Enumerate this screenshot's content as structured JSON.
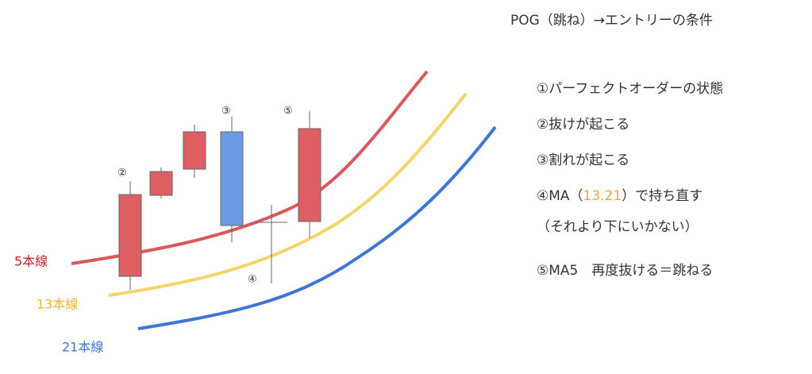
{
  "title": "POG（跳ね）→エントリーの条件",
  "conditions": [
    {
      "text": "①パーフェクトオーダーの状態"
    },
    {
      "text": "②抜けが起こる"
    },
    {
      "text": "③割れが起こる"
    },
    {
      "prefix": "④MA（",
      "highlight": "13.21",
      "suffix": "）で持ち直す"
    },
    {
      "text": "（それより下にいかない）"
    },
    {
      "text": "⑤MA5　再度抜ける＝跳ねる"
    }
  ],
  "ma_labels": [
    "5本線",
    "13本線",
    "21本線"
  ],
  "candle_markers": [
    "②",
    "③",
    "④",
    "⑤"
  ]
}
